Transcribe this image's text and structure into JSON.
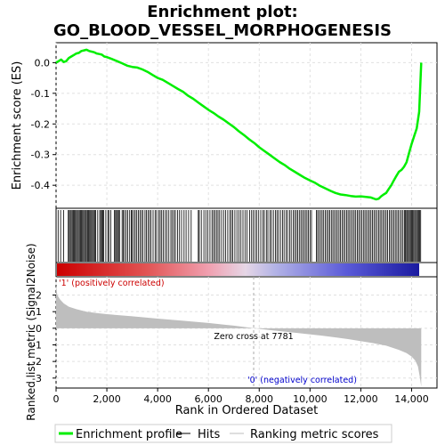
{
  "colors": {
    "enrichment_line": "#00ee00",
    "hits": "#000000",
    "metric_fill": "#bebebe",
    "pos_label": "#cc0000",
    "neg_label": "#0000cc",
    "grid": "#e0e0e0"
  },
  "chart_data": [
    {
      "type": "line",
      "title": "Enrichment plot:",
      "subtitle": "GO_BLOOD_VESSEL_MORPHOGENESIS",
      "ylabel": "Enrichment score (ES)",
      "ylim": [
        -0.475,
        0.065
      ],
      "yticks": [
        0.0,
        -0.1,
        -0.2,
        -0.3,
        -0.4
      ],
      "ytick_labels": [
        "0.0",
        "-0.1",
        "-0.2",
        "-0.3",
        "-0.4"
      ],
      "xlim": [
        0,
        15000
      ],
      "grid": true,
      "series": [
        {
          "name": "Enrichment profile",
          "x": [
            0,
            100,
            200,
            300,
            400,
            500,
            600,
            700,
            800,
            900,
            1000,
            1100,
            1200,
            1300,
            1400,
            1500,
            1600,
            1700,
            1800,
            1900,
            2000,
            2200,
            2400,
            2600,
            2800,
            3000,
            3200,
            3400,
            3600,
            3800,
            4000,
            4200,
            4400,
            4600,
            4800,
            5000,
            5200,
            5400,
            5600,
            5800,
            6000,
            6200,
            6400,
            6600,
            6800,
            7000,
            7200,
            7400,
            7600,
            7800,
            8000,
            8200,
            8400,
            8600,
            8800,
            9000,
            9200,
            9400,
            9600,
            9800,
            10000,
            10200,
            10400,
            10600,
            10800,
            11000,
            11200,
            11400,
            11600,
            11800,
            12000,
            12200,
            12400,
            12600,
            12700,
            12800,
            12900,
            13000,
            13100,
            13200,
            13300,
            13400,
            13500,
            13600,
            13700,
            13800,
            13900,
            14000,
            14100,
            14200,
            14300,
            14380
          ],
          "y": [
            0.0,
            0.005,
            0.01,
            0.002,
            0.005,
            0.015,
            0.02,
            0.025,
            0.03,
            0.032,
            0.038,
            0.04,
            0.042,
            0.038,
            0.036,
            0.034,
            0.03,
            0.028,
            0.026,
            0.02,
            0.018,
            0.012,
            0.005,
            -0.002,
            -0.01,
            -0.014,
            -0.016,
            -0.022,
            -0.03,
            -0.04,
            -0.05,
            -0.056,
            -0.066,
            -0.076,
            -0.086,
            -0.095,
            -0.108,
            -0.118,
            -0.13,
            -0.142,
            -0.154,
            -0.164,
            -0.176,
            -0.186,
            -0.198,
            -0.21,
            -0.224,
            -0.236,
            -0.25,
            -0.262,
            -0.276,
            -0.288,
            -0.3,
            -0.312,
            -0.324,
            -0.334,
            -0.346,
            -0.356,
            -0.366,
            -0.376,
            -0.384,
            -0.392,
            -0.402,
            -0.41,
            -0.418,
            -0.425,
            -0.43,
            -0.432,
            -0.435,
            -0.437,
            -0.436,
            -0.438,
            -0.44,
            -0.446,
            -0.444,
            -0.436,
            -0.43,
            -0.425,
            -0.412,
            -0.4,
            -0.384,
            -0.37,
            -0.356,
            -0.35,
            -0.34,
            -0.325,
            -0.295,
            -0.265,
            -0.24,
            -0.215,
            -0.16,
            -0.0
          ]
        }
      ]
    },
    {
      "type": "scatter",
      "role": "hits",
      "series": [
        {
          "name": "Hits",
          "x": [
            80,
            180,
            300,
            480,
            520,
            560,
            600,
            640,
            680,
            720,
            760,
            800,
            840,
            880,
            920,
            960,
            1000,
            1040,
            1080,
            1120,
            1160,
            1200,
            1240,
            1280,
            1320,
            1360,
            1400,
            1440,
            1480,
            1520,
            1560,
            1640,
            1720,
            1760,
            1800,
            1840,
            1880,
            1960,
            2040,
            2080,
            2160,
            2300,
            2340,
            2380,
            2420,
            2460,
            2500,
            2600,
            2650,
            2700,
            2760,
            2820,
            2900,
            2960,
            3000,
            3060,
            3120,
            3180,
            3240,
            3300,
            3360,
            3420,
            3500,
            3560,
            3620,
            3680,
            3740,
            3820,
            3900,
            3960,
            4040,
            4100,
            4160,
            4220,
            4300,
            4360,
            4440,
            4520,
            4580,
            4640,
            4700,
            4780,
            4860,
            4940,
            5040,
            5120,
            5220,
            5320,
            5600,
            5640,
            5720,
            5820,
            5900,
            5980,
            6060,
            6140,
            6200,
            6260,
            6320,
            6380,
            6440,
            6520,
            6600,
            6680,
            6760,
            6840,
            6900,
            6960,
            7040,
            7120,
            7200,
            7280,
            7360,
            7440,
            7520,
            7620,
            7700,
            7760,
            7840,
            7900,
            7980,
            8060,
            8140,
            8200,
            8280,
            8340,
            8420,
            8480,
            8560,
            8640,
            8700,
            8760,
            8840,
            8920,
            8980,
            9060,
            9120,
            9200,
            9260,
            9340,
            9400,
            9460,
            9520,
            9580,
            9640,
            9700,
            9760,
            9820,
            9880,
            9940,
            10000,
            10060,
            10250,
            10300,
            10360,
            10420,
            10480,
            10540,
            10600,
            10660,
            10720,
            10780,
            10840,
            10900,
            10960,
            11020,
            11080,
            11140,
            11200,
            11260,
            11320,
            11380,
            11440,
            11500,
            11560,
            11620,
            11680,
            11740,
            11800,
            11860,
            11920,
            11980,
            12040,
            12100,
            12160,
            12220,
            12280,
            12340,
            12400,
            12460,
            12520,
            12580,
            12640,
            12700,
            12760,
            12820,
            12880,
            12940,
            13000,
            13060,
            13120,
            13180,
            13240,
            13300,
            13360,
            13420,
            13480,
            13540,
            13600,
            13660,
            13720,
            13760,
            13800,
            13840,
            13880,
            13920,
            13960,
            14000,
            14040,
            14080,
            14120,
            14160,
            14200,
            14240,
            14280,
            14320,
            14360
          ]
        }
      ]
    },
    {
      "type": "area",
      "role": "ranked-list-metric",
      "ylabel": "Ranked list metric (Signal2Noise)",
      "xlabel": "Rank in Ordered Dataset",
      "ylim": [
        -3.6,
        3.1
      ],
      "yticks": [
        2,
        1,
        0,
        -1,
        -2,
        -3
      ],
      "ytick_labels": [
        "2",
        "1",
        "0",
        "-1",
        "-2",
        "-3"
      ],
      "xlim": [
        0,
        15000
      ],
      "xticks": [
        0,
        2000,
        4000,
        6000,
        8000,
        10000,
        12000,
        14000
      ],
      "xtick_labels": [
        "0",
        "2,000",
        "4,000",
        "6,000",
        "8,000",
        "10,000",
        "12,000",
        "14,000"
      ],
      "zero_cross": 7781,
      "zero_cross_label": "Zero cross at 7781",
      "pos_label": "'1' (positively correlated)",
      "neg_label": "'0' (negatively correlated)",
      "series": [
        {
          "name": "Ranking metric scores",
          "x": [
            0,
            50,
            150,
            300,
            500,
            800,
            1200,
            1600,
            2000,
            3000,
            4000,
            5000,
            6000,
            7000,
            7781,
            8500,
            9500,
            10500,
            11500,
            12500,
            13000,
            13500,
            13800,
            14000,
            14150,
            14250,
            14320,
            14380
          ],
          "y": [
            2.6,
            2.0,
            1.75,
            1.5,
            1.3,
            1.15,
            1.0,
            0.92,
            0.85,
            0.72,
            0.58,
            0.45,
            0.32,
            0.16,
            0.0,
            -0.12,
            -0.28,
            -0.45,
            -0.65,
            -0.9,
            -1.05,
            -1.3,
            -1.5,
            -1.7,
            -1.95,
            -2.3,
            -2.9,
            -3.5
          ]
        }
      ]
    }
  ],
  "legend": [
    {
      "label": "Enrichment profile",
      "kind": "line",
      "color": "#00ee00"
    },
    {
      "label": "Hits",
      "kind": "line",
      "color": "#000000"
    },
    {
      "label": "Ranking metric scores",
      "kind": "line",
      "color": "#bebebe"
    }
  ]
}
